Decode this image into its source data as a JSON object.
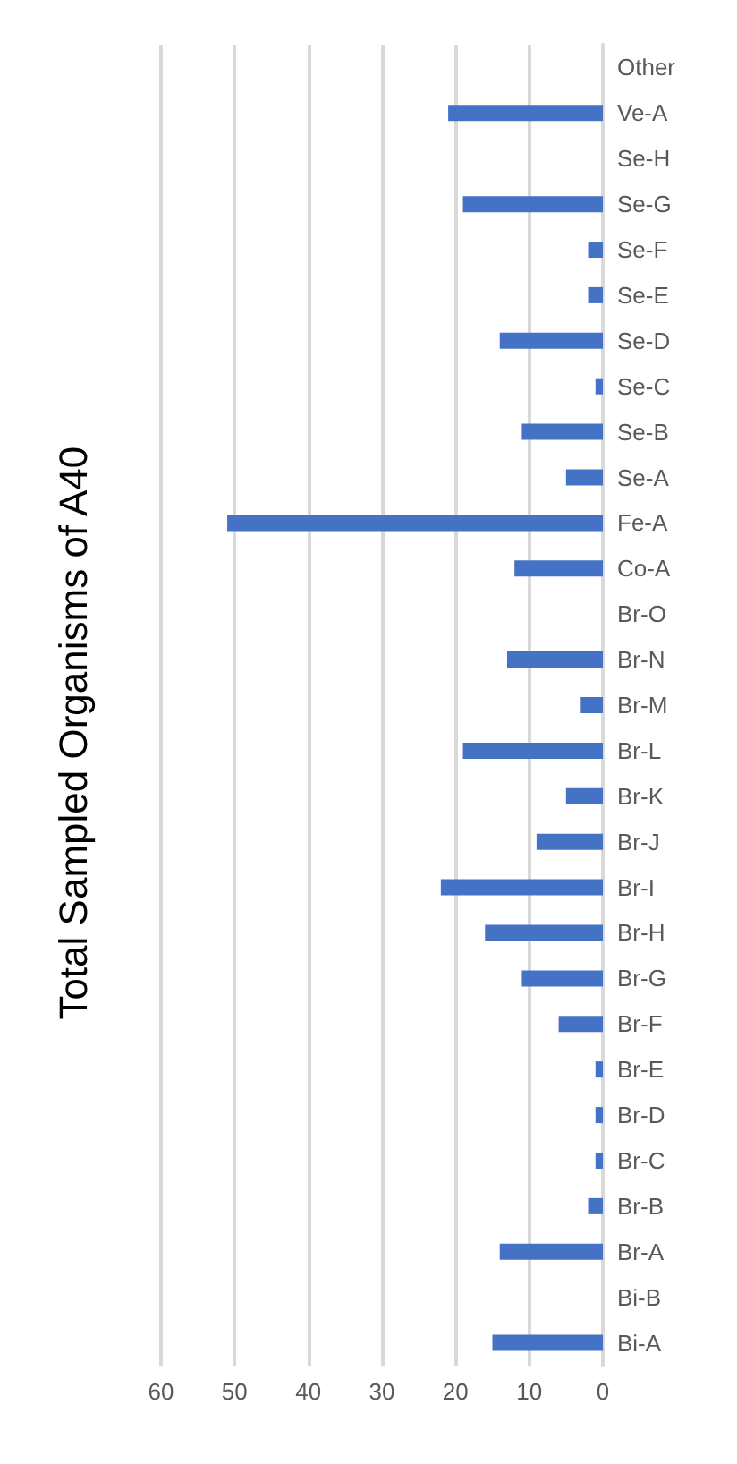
{
  "chart_data": {
    "type": "bar",
    "title": "Total Sampled Organisms of A40",
    "orientation": "horizontal",
    "categories": [
      "Other",
      "Ve-A",
      "Se-H",
      "Se-G",
      "Se-F",
      "Se-E",
      "Se-D",
      "Se-C",
      "Se-B",
      "Se-A",
      "Fe-A",
      "Co-A",
      "Br-O",
      "Br-N",
      "Br-M",
      "Br-L",
      "Br-K",
      "Br-J",
      "Br-I",
      "Br-H",
      "Br-G",
      "Br-F",
      "Br-E",
      "Br-D",
      "Br-C",
      "Br-B",
      "Br-A",
      "Bi-B",
      "Bi-A"
    ],
    "values": [
      0,
      21,
      0,
      19,
      2,
      2,
      14,
      1,
      11,
      5,
      51,
      12,
      0,
      13,
      3,
      19,
      5,
      9,
      22,
      16,
      11,
      6,
      1,
      1,
      1,
      2,
      14,
      0,
      15
    ],
    "color": "#4472c4",
    "xlim": [
      60,
      0
    ],
    "xticks": [
      0,
      10,
      20,
      30,
      40,
      50,
      60
    ],
    "grid": "x"
  }
}
